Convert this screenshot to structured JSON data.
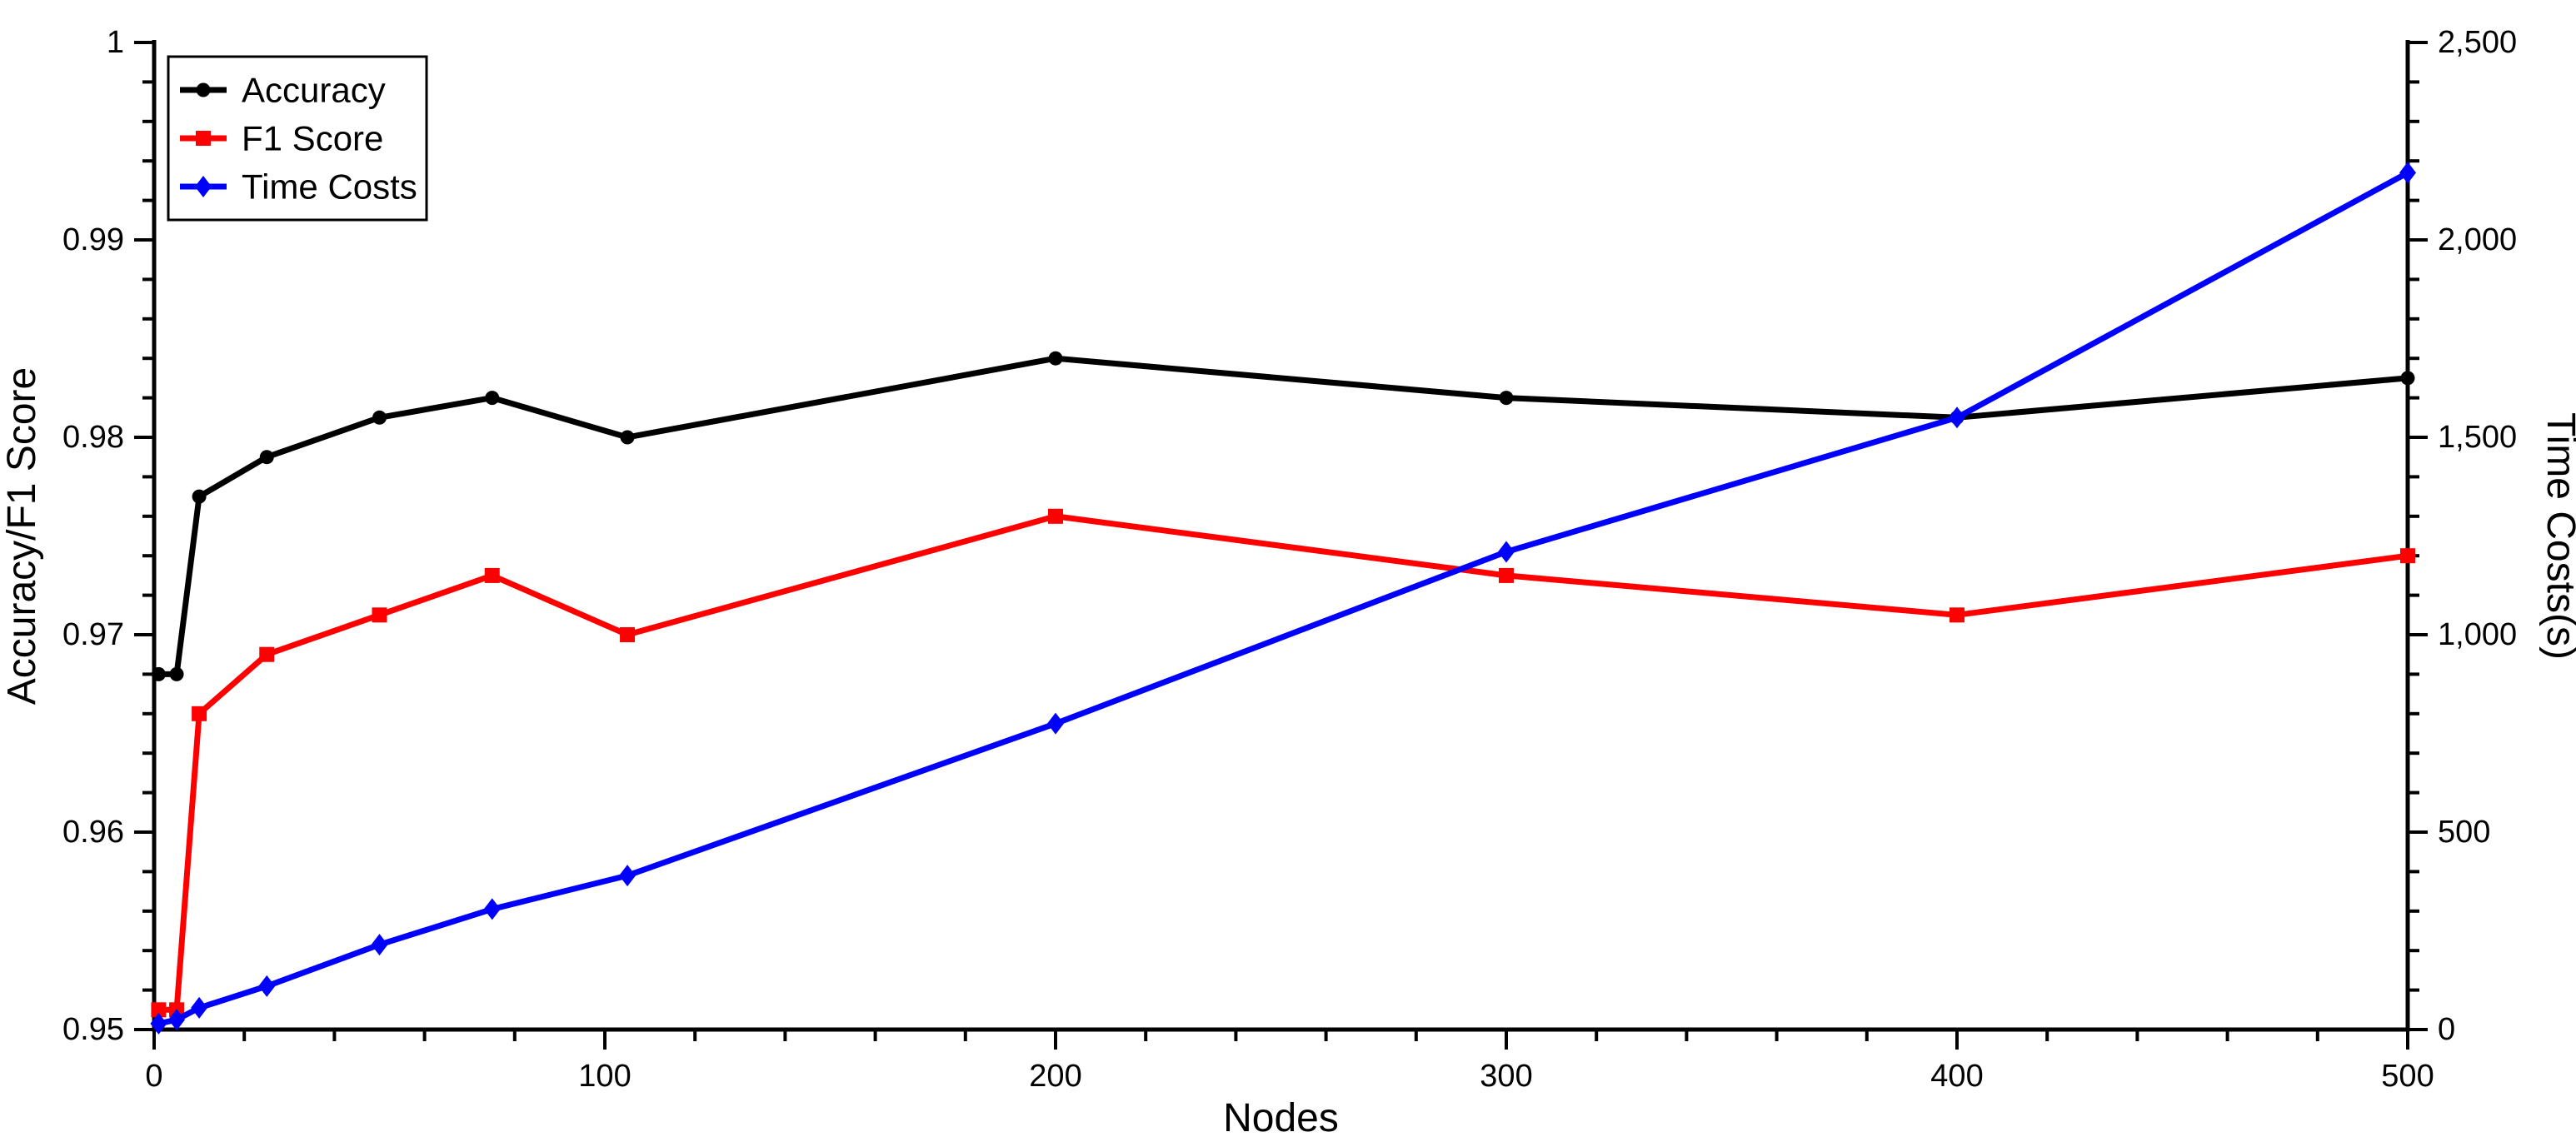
{
  "chart_data": {
    "type": "line",
    "title": "",
    "xlabel": "Nodes",
    "ylabel_left": "Accuracy/F1 Score",
    "ylabel_right": "Time Costs(s)",
    "background": "#ffffff",
    "grid": false,
    "x": [
      1,
      5,
      10,
      25,
      50,
      75,
      105,
      200,
      300,
      400,
      500
    ],
    "series": [
      {
        "name": "Accuracy",
        "axis": "left",
        "color": "#000000",
        "marker": "circle",
        "values": [
          0.968,
          0.968,
          0.977,
          0.979,
          0.981,
          0.982,
          0.98,
          0.984,
          0.982,
          0.981,
          0.983
        ]
      },
      {
        "name": "F1 Score",
        "axis": "left",
        "color": "#ff0000",
        "marker": "square",
        "values": [
          0.951,
          0.951,
          0.966,
          0.969,
          0.971,
          0.973,
          0.97,
          0.976,
          0.973,
          0.971,
          0.974
        ]
      },
      {
        "name": "Time Costs",
        "axis": "right",
        "color": "#0000ff",
        "marker": "diamond",
        "values": [
          15,
          25,
          55,
          110,
          215,
          305,
          390,
          775,
          1210,
          1550,
          2170
        ]
      }
    ],
    "x_axis": {
      "min": 0,
      "max": 500,
      "major": 100,
      "minor": 20,
      "tick_labels": [
        "0",
        "100",
        "200",
        "300",
        "400",
        "500"
      ]
    },
    "left_axis": {
      "min": 0.95,
      "max": 1.0,
      "major": 0.01,
      "minor": 0.002,
      "tick_labels": [
        "0.95",
        "0.96",
        "0.97",
        "0.98",
        "0.99",
        "1"
      ]
    },
    "right_axis": {
      "min": 0,
      "max": 2500,
      "major": 500,
      "minor": 100,
      "tick_labels": [
        "0",
        "500",
        "1,000",
        "1,500",
        "2,000",
        "2,500"
      ]
    },
    "legend": {
      "position": "top-left",
      "entries": [
        "Accuracy",
        "F1 Score",
        "Time Costs"
      ]
    }
  }
}
